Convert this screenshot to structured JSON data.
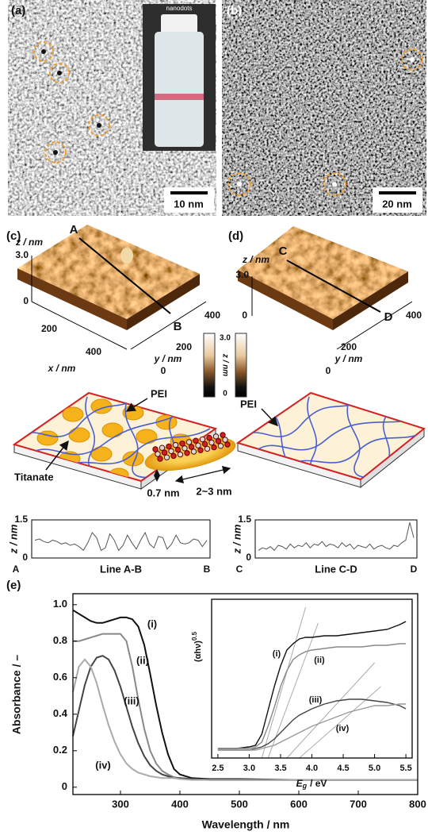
{
  "panel_a": {
    "label": "(a)",
    "vial_text": "nanodots",
    "scale_bar": "10 nm"
  },
  "panel_b": {
    "label": "(b)",
    "scale_bar": "20 nm"
  },
  "panel_c": {
    "label": "(c)",
    "z_label": "z / nm",
    "z_ticks": [
      "3.0",
      "0"
    ],
    "x_label": "x / nm",
    "x_ticks": [
      "200",
      "400"
    ],
    "y_label": "y / nm",
    "y_ticks": [
      "0",
      "200",
      "400"
    ],
    "line_start": "A",
    "line_end": "B"
  },
  "panel_d": {
    "label": "(d)",
    "z_label": "z / nm",
    "z_ticks": [
      "3.0",
      "0"
    ],
    "y_label": "y / nm",
    "y_ticks": [
      "0",
      "200",
      "400"
    ],
    "line_start": "C",
    "line_end": "D"
  },
  "colorbar": {
    "max": "3.0",
    "label": "z / nm",
    "min": "0"
  },
  "schematic_c": {
    "pei": "PEI",
    "titanate": "Titanate",
    "thickness": "0.7 nm",
    "width": "2~3 nm"
  },
  "schematic_d": {
    "pei": "PEI"
  },
  "panel_e_label": "(e)",
  "chart_data": [
    {
      "type": "line",
      "ylabel": "z / nm",
      "xlabel": "Line A-B",
      "start_label": "A",
      "end_label": "B",
      "color": "#555555",
      "values": [
        0.7,
        0.75,
        0.65,
        0.6,
        0.7,
        0.65,
        0.55,
        0.6,
        0.5,
        0.55,
        0.45,
        0.3,
        0.6,
        1.0,
        0.8,
        0.3,
        0.4,
        0.95,
        0.7,
        0.3,
        0.5,
        0.9,
        0.6,
        0.35,
        0.7,
        1.0,
        0.55,
        0.4,
        0.85,
        0.8,
        0.35,
        0.55,
        0.9,
        0.6,
        0.55,
        0.6,
        0.75,
        0.7,
        0.45,
        0.7
      ],
      "ylim": [
        0,
        1.5
      ],
      "yticks": [
        0,
        1.5
      ]
    },
    {
      "type": "line",
      "ylabel": "z / nm",
      "xlabel": "Line C-D",
      "start_label": "C",
      "end_label": "D",
      "color": "#555555",
      "values": [
        0.3,
        0.4,
        0.35,
        0.45,
        0.3,
        0.5,
        0.45,
        0.35,
        0.55,
        0.4,
        0.5,
        0.45,
        0.6,
        0.4,
        0.55,
        0.5,
        0.65,
        0.45,
        0.55,
        0.5,
        0.4,
        0.6,
        0.45,
        0.55,
        0.35,
        0.5,
        0.45,
        0.4,
        0.55,
        0.35,
        0.45,
        0.5,
        0.4,
        0.35,
        0.5,
        0.45,
        0.6,
        0.7,
        1.4,
        0.8
      ],
      "ylim": [
        0,
        1.5
      ],
      "yticks": [
        0,
        1.5
      ]
    },
    {
      "type": "line",
      "xlabel": "Wavelength / nm",
      "ylabel": "Absorbance / –",
      "x": [
        220,
        230,
        240,
        250,
        260,
        270,
        280,
        290,
        300,
        310,
        320,
        330,
        340,
        350,
        360,
        370,
        380,
        390,
        400,
        420,
        450,
        500,
        600,
        700,
        800
      ],
      "series": [
        {
          "name": "(i)",
          "color": "#111111",
          "values": [
            0.97,
            0.95,
            0.93,
            0.91,
            0.9,
            0.9,
            0.91,
            0.92,
            0.93,
            0.93,
            0.92,
            0.88,
            0.78,
            0.62,
            0.45,
            0.3,
            0.18,
            0.1,
            0.07,
            0.05,
            0.045,
            0.045,
            0.04,
            0.04,
            0.04
          ]
        },
        {
          "name": "(ii)",
          "color": "#888888",
          "values": [
            0.8,
            0.8,
            0.81,
            0.82,
            0.83,
            0.84,
            0.84,
            0.84,
            0.84,
            0.8,
            0.66,
            0.48,
            0.32,
            0.2,
            0.13,
            0.09,
            0.07,
            0.055,
            0.05,
            0.045,
            0.04,
            0.04,
            0.04,
            0.04,
            0.04
          ]
        },
        {
          "name": "(iii)",
          "color": "#444444",
          "values": [
            0.28,
            0.42,
            0.56,
            0.66,
            0.71,
            0.72,
            0.7,
            0.64,
            0.55,
            0.44,
            0.33,
            0.24,
            0.17,
            0.12,
            0.09,
            0.07,
            0.06,
            0.05,
            0.05,
            0.045,
            0.04,
            0.04,
            0.04,
            0.04,
            0.04
          ]
        },
        {
          "name": "(iv)",
          "color": "#aaaaaa",
          "values": [
            0.52,
            0.66,
            0.7,
            0.66,
            0.57,
            0.45,
            0.34,
            0.25,
            0.18,
            0.13,
            0.1,
            0.08,
            0.07,
            0.06,
            0.055,
            0.05,
            0.05,
            0.05,
            0.045,
            0.04,
            0.04,
            0.04,
            0.04,
            0.04,
            0.04
          ]
        }
      ],
      "xlim": [
        220,
        800
      ],
      "ylim": [
        -0.04,
        1.06
      ],
      "xticks": [
        300,
        400,
        500,
        600,
        700,
        800
      ],
      "yticks": [
        0,
        0.2,
        0.4,
        0.6,
        0.8,
        {
          "value": 1,
          "label": "1.0"
        }
      ]
    },
    {
      "type": "line",
      "ylabel": "(αhν)",
      "ylabel_sup": "0.5",
      "xlabel": "E",
      "xlabel_sub": "g",
      "xlabel_unit": "/ eV",
      "x": [
        2.5,
        2.8,
        3.0,
        3.1,
        3.2,
        3.3,
        3.4,
        3.5,
        3.6,
        3.7,
        3.8,
        3.9,
        4.0,
        4.2,
        4.4,
        4.6,
        4.8,
        5.0,
        5.2,
        5.4,
        5.5
      ],
      "series": [
        {
          "name": "(i)",
          "color": "#111111",
          "values": [
            0.06,
            0.06,
            0.07,
            0.08,
            0.15,
            0.3,
            0.45,
            0.58,
            0.68,
            0.72,
            0.75,
            0.76,
            0.76,
            0.77,
            0.77,
            0.78,
            0.79,
            0.8,
            0.81,
            0.84,
            0.86
          ]
        },
        {
          "name": "(ii)",
          "color": "#888888",
          "values": [
            0.06,
            0.06,
            0.06,
            0.07,
            0.1,
            0.2,
            0.32,
            0.45,
            0.55,
            0.62,
            0.65,
            0.67,
            0.68,
            0.69,
            0.7,
            0.7,
            0.7,
            0.71,
            0.71,
            0.72,
            0.72
          ]
        },
        {
          "name": "(iii)",
          "color": "#444444",
          "values": [
            0.05,
            0.05,
            0.05,
            0.06,
            0.07,
            0.09,
            0.12,
            0.16,
            0.2,
            0.24,
            0.27,
            0.29,
            0.31,
            0.34,
            0.36,
            0.37,
            0.37,
            0.36,
            0.35,
            0.33,
            0.31
          ]
        },
        {
          "name": "(iv)",
          "color": "#999999",
          "values": [
            0.05,
            0.05,
            0.05,
            0.05,
            0.06,
            0.07,
            0.08,
            0.1,
            0.12,
            0.14,
            0.16,
            0.18,
            0.2,
            0.23,
            0.26,
            0.29,
            0.31,
            0.33,
            0.33,
            0.34,
            0.34
          ]
        }
      ],
      "fit_lines": [
        {
          "color": "#aaaaaa",
          "x": [
            3.2,
            3.9
          ],
          "values": [
            0,
            0.95
          ]
        },
        {
          "color": "#aaaaaa",
          "x": [
            3.3,
            4.1
          ],
          "values": [
            0,
            0.85
          ]
        },
        {
          "color": "#aaaaaa",
          "x": [
            3.6,
            5.0
          ],
          "values": [
            0,
            0.6
          ]
        },
        {
          "color": "#aaaaaa",
          "x": [
            3.8,
            5.1
          ],
          "values": [
            0,
            0.45
          ]
        }
      ],
      "xlim": [
        2.4,
        5.6
      ],
      "ylim": [
        0,
        1
      ],
      "xticks": [
        2.5,
        {
          "value": 3,
          "label": "3.0"
        },
        3.5,
        {
          "value": 4,
          "label": "4.0"
        },
        4.5,
        {
          "value": 5,
          "label": "5.0"
        },
        5.5
      ]
    }
  ]
}
